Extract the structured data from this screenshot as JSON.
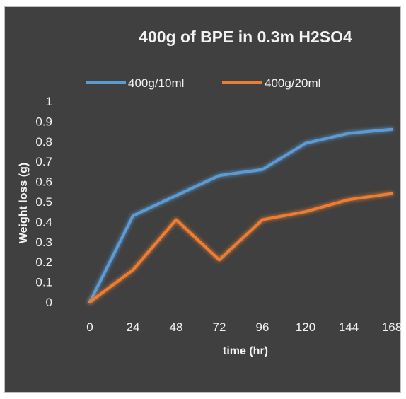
{
  "chart_data": {
    "type": "line",
    "title": "400g of BPE in 0.3m H2SO4",
    "xlabel": "time (hr)",
    "ylabel": "Weight loss (g)",
    "x": [
      0,
      24,
      48,
      72,
      96,
      120,
      144,
      168
    ],
    "x_tick_labels": [
      "0",
      "24",
      "48",
      "72",
      "96",
      "120",
      "144",
      "168"
    ],
    "y_tick_labels": [
      "0",
      "0.1",
      "0.2",
      "0.3",
      "0.4",
      "0.5",
      "0.6",
      "0.7",
      "0.8",
      "0.9",
      "1"
    ],
    "ylim": [
      0,
      1
    ],
    "grid": false,
    "legend_position": "top",
    "series": [
      {
        "name": "400g/10ml",
        "color": "#5b9bd5",
        "values": [
          0,
          0.43,
          0.53,
          0.63,
          0.66,
          0.79,
          0.84,
          0.86
        ]
      },
      {
        "name": "400g/20ml",
        "color": "#ed7d31",
        "values": [
          0,
          0.16,
          0.41,
          0.21,
          0.41,
          0.45,
          0.51,
          0.54
        ]
      }
    ]
  }
}
